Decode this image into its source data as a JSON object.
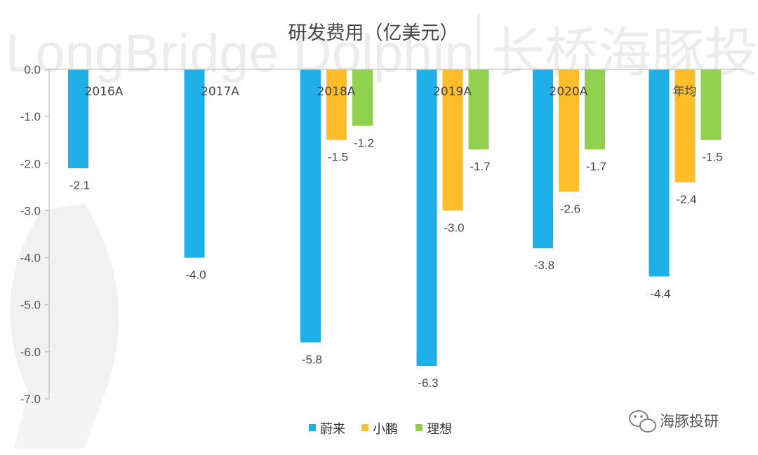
{
  "watermark": {
    "text": "LongBridge Dolphin",
    "cn_text": "长桥海豚投研"
  },
  "brand": {
    "label": "海豚投研",
    "icon": "wechat-icon"
  },
  "chart_data": {
    "type": "bar",
    "title": "研发费用（亿美元）",
    "categories": [
      "2016A",
      "2017A",
      "2018A",
      "2019A",
      "2020A",
      "年均"
    ],
    "series": [
      {
        "name": "蔚来",
        "color": "#1FB0E8",
        "values": [
          -2.1,
          -4.0,
          -5.8,
          -6.3,
          -3.8,
          -4.4
        ]
      },
      {
        "name": "小鹏",
        "color": "#FFBE2A",
        "values": [
          null,
          null,
          -1.5,
          -3.0,
          -2.6,
          -2.4
        ]
      },
      {
        "name": "理想",
        "color": "#92D050",
        "values": [
          null,
          null,
          -1.2,
          -1.7,
          -1.7,
          -1.5
        ]
      }
    ],
    "ylim": [
      -7.0,
      0.0
    ],
    "yticks": [
      "0.0",
      "-1.0",
      "-2.0",
      "-3.0",
      "-4.0",
      "-5.0",
      "-6.0",
      "-7.0"
    ],
    "xlabel": "",
    "ylabel": "",
    "grid": false,
    "legend_position": "bottom"
  }
}
